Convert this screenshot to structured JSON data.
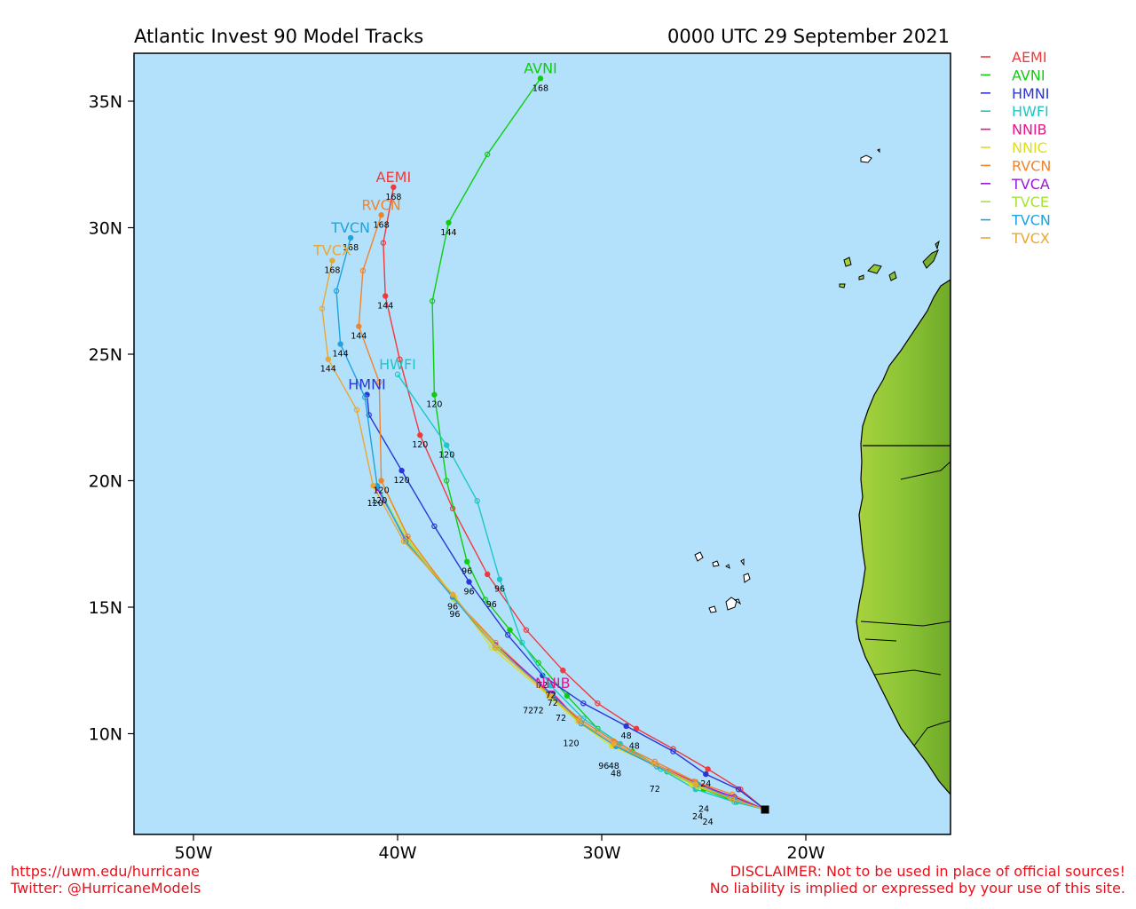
{
  "header": {
    "title": "Atlantic Invest 90 Model Tracks",
    "timestamp": "0000 UTC 29 September 2021"
  },
  "axes": {
    "x_ticks": [
      "50W",
      "40W",
      "30W",
      "20W"
    ],
    "y_ticks": [
      "35N",
      "30N",
      "25N",
      "20N",
      "15N",
      "10N"
    ]
  },
  "colors": {
    "ocean": "#b3e1fb",
    "land": "#7cb92c",
    "land_light": "#a7d33d",
    "border": "#000000"
  },
  "legend": [
    {
      "name": "AEMI",
      "color": "#f0393c"
    },
    {
      "name": "AVNI",
      "color": "#10cc10"
    },
    {
      "name": "HMNI",
      "color": "#2a36d6"
    },
    {
      "name": "HWFI",
      "color": "#1fc6c6"
    },
    {
      "name": "NNIB",
      "color": "#e8158e"
    },
    {
      "name": "NNIC",
      "color": "#dddd22"
    },
    {
      "name": "RVCN",
      "color": "#f0842c"
    },
    {
      "name": "TVCA",
      "color": "#9c19d8"
    },
    {
      "name": "TVCE",
      "color": "#a6e23a"
    },
    {
      "name": "TVCN",
      "color": "#1ea3de"
    },
    {
      "name": "TVCX",
      "color": "#eaa733"
    }
  ],
  "start_point": {
    "lon": -22.0,
    "lat": 7.0
  },
  "tracks": [
    {
      "name": "AEMI",
      "label": "AEMI",
      "points": [
        [
          -22.0,
          7.0
        ],
        [
          -23.2,
          7.8
        ],
        [
          -24.8,
          8.6
        ],
        [
          -26.5,
          9.4
        ],
        [
          -28.3,
          10.2
        ],
        [
          -30.2,
          11.2
        ],
        [
          -31.9,
          12.5
        ],
        [
          -33.7,
          14.1
        ],
        [
          -35.6,
          16.3
        ],
        [
          -37.3,
          18.9
        ],
        [
          -38.9,
          21.8
        ],
        [
          -39.9,
          24.8
        ],
        [
          -40.6,
          27.3
        ],
        [
          -40.7,
          29.4
        ],
        [
          -40.2,
          31.6
        ]
      ],
      "hour_labels": [
        [
          "120",
          -38.9,
          21.8
        ],
        [
          "144",
          -40.6,
          27.3
        ],
        [
          "168",
          -40.2,
          31.6
        ]
      ]
    },
    {
      "name": "AVNI",
      "label": "AVNI",
      "points": [
        [
          -22.0,
          7.0
        ],
        [
          -23.4,
          7.3
        ],
        [
          -25.0,
          7.8
        ],
        [
          -26.8,
          8.5
        ],
        [
          -28.5,
          9.3
        ],
        [
          -30.2,
          10.2
        ],
        [
          -31.7,
          11.5
        ],
        [
          -33.1,
          12.8
        ],
        [
          -34.5,
          14.1
        ],
        [
          -35.7,
          15.3
        ],
        [
          -36.6,
          16.8
        ],
        [
          -37.6,
          20.0
        ],
        [
          -38.2,
          23.4
        ],
        [
          -38.3,
          27.1
        ],
        [
          -37.5,
          30.2
        ],
        [
          -35.6,
          32.9
        ],
        [
          -33.0,
          35.9
        ]
      ],
      "hour_labels": [
        [
          "96",
          -36.6,
          16.8
        ],
        [
          "120",
          -38.2,
          23.4
        ],
        [
          "144",
          -37.5,
          30.2
        ],
        [
          "168",
          -33.0,
          35.9
        ]
      ]
    },
    {
      "name": "HMNI",
      "label": "HMNI",
      "points": [
        [
          -22.0,
          7.0
        ],
        [
          -23.3,
          7.8
        ],
        [
          -24.9,
          8.4
        ],
        [
          -26.5,
          9.3
        ],
        [
          -28.8,
          10.3
        ],
        [
          -30.9,
          11.2
        ],
        [
          -32.9,
          12.3
        ],
        [
          -34.6,
          13.9
        ],
        [
          -36.5,
          16.0
        ],
        [
          -38.2,
          18.2
        ],
        [
          -39.8,
          20.4
        ],
        [
          -41.4,
          22.6
        ],
        [
          -41.5,
          23.4
        ]
      ],
      "hour_labels": [
        [
          "72",
          -32.9,
          12.3
        ],
        [
          "96",
          -36.5,
          16.0
        ],
        [
          "120",
          -39.8,
          20.4
        ],
        [
          "48",
          -28.8,
          10.3
        ],
        [
          "24",
          -24.9,
          8.4
        ]
      ]
    },
    {
      "name": "HWFI",
      "label": "HWFI",
      "points": [
        [
          -22.0,
          7.0
        ],
        [
          -23.5,
          7.3
        ],
        [
          -25.4,
          7.8
        ],
        [
          -27.1,
          8.6
        ],
        [
          -29.1,
          9.6
        ],
        [
          -30.9,
          10.6
        ],
        [
          -32.5,
          11.9
        ],
        [
          -33.9,
          13.6
        ],
        [
          -35.0,
          16.1
        ],
        [
          -36.1,
          19.2
        ],
        [
          -37.6,
          21.4
        ],
        [
          -40.0,
          24.2
        ]
      ],
      "hour_labels": [
        [
          "72",
          -32.5,
          11.9
        ],
        [
          "96",
          -35.0,
          16.1
        ],
        [
          "120",
          -37.6,
          21.4
        ]
      ]
    },
    {
      "name": "NNIB",
      "label": "NNIB",
      "points": [
        [
          -22.0,
          7.0
        ],
        [
          -23.6,
          7.5
        ],
        [
          -25.5,
          8.1
        ],
        [
          -27.4,
          8.8
        ],
        [
          -29.4,
          9.6
        ],
        [
          -31.1,
          10.5
        ],
        [
          -32.4,
          11.6
        ]
      ],
      "hour_labels": [
        [
          "72",
          -32.4,
          11.6
        ]
      ]
    },
    {
      "name": "NNIC",
      "label": "",
      "points": [
        [
          -22.0,
          7.0
        ],
        [
          -23.7,
          7.5
        ],
        [
          -25.6,
          8.0
        ],
        [
          -27.5,
          8.8
        ],
        [
          -29.5,
          9.5
        ],
        [
          -31.2,
          10.5
        ],
        [
          -32.6,
          11.5
        ],
        [
          -35.4,
          13.4
        ],
        [
          -37.2,
          15.4
        ],
        [
          -39.5,
          17.7
        ],
        [
          -40.8,
          20.0
        ]
      ],
      "hour_labels": [
        [
          "120",
          -40.8,
          20.0
        ]
      ]
    },
    {
      "name": "RVCN",
      "label": "RVCN",
      "points": [
        [
          -22.0,
          7.0
        ],
        [
          -23.6,
          7.6
        ],
        [
          -25.4,
          8.1
        ],
        [
          -27.4,
          8.9
        ],
        [
          -29.4,
          9.7
        ],
        [
          -31.1,
          10.6
        ],
        [
          -32.6,
          11.6
        ],
        [
          -35.2,
          13.6
        ],
        [
          -37.3,
          15.4
        ],
        [
          -39.5,
          17.8
        ],
        [
          -40.8,
          20.0
        ],
        [
          -40.9,
          23.9
        ],
        [
          -41.9,
          26.1
        ],
        [
          -41.7,
          28.3
        ],
        [
          -40.8,
          30.5
        ]
      ],
      "hour_labels": [
        [
          "144",
          -41.9,
          26.1
        ],
        [
          "168",
          -40.8,
          30.5
        ]
      ]
    },
    {
      "name": "TVCA",
      "label": "",
      "points": [
        [
          -22.0,
          7.0
        ],
        [
          -23.5,
          7.5
        ],
        [
          -25.4,
          8.0
        ],
        [
          -27.4,
          8.8
        ],
        [
          -29.4,
          9.6
        ],
        [
          -31.1,
          10.5
        ],
        [
          -32.5,
          11.6
        ],
        [
          -35.2,
          13.5
        ],
        [
          -37.3,
          15.4
        ],
        [
          -39.6,
          17.7
        ],
        [
          -41.0,
          19.7
        ]
      ],
      "hour_labels": [
        [
          "96",
          -37.3,
          15.4
        ]
      ]
    },
    {
      "name": "TVCE",
      "label": "",
      "points": [
        [
          -22.0,
          7.0
        ],
        [
          -23.5,
          7.4
        ],
        [
          -25.3,
          7.9
        ],
        [
          -27.3,
          8.7
        ],
        [
          -29.3,
          9.5
        ],
        [
          -31.0,
          10.4
        ],
        [
          -32.4,
          11.4
        ],
        [
          -35.1,
          13.4
        ],
        [
          -37.2,
          15.3
        ],
        [
          -39.5,
          17.6
        ],
        [
          -41.0,
          19.8
        ]
      ],
      "hour_labels": []
    },
    {
      "name": "TVCN",
      "label": "TVCN",
      "points": [
        [
          -22.0,
          7.0
        ],
        [
          -23.5,
          7.4
        ],
        [
          -25.3,
          8.0
        ],
        [
          -27.3,
          8.7
        ],
        [
          -29.3,
          9.5
        ],
        [
          -31.0,
          10.4
        ],
        [
          -32.4,
          11.5
        ],
        [
          -35.2,
          13.4
        ],
        [
          -37.3,
          15.4
        ],
        [
          -39.6,
          17.6
        ],
        [
          -41.0,
          19.8
        ],
        [
          -41.6,
          23.3
        ],
        [
          -42.8,
          25.4
        ],
        [
          -43.0,
          27.5
        ],
        [
          -42.3,
          29.6
        ]
      ],
      "hour_labels": [
        [
          "144",
          -42.8,
          25.4
        ],
        [
          "168",
          -42.3,
          29.6
        ]
      ]
    },
    {
      "name": "TVCX",
      "label": "TVCX",
      "points": [
        [
          -22.0,
          7.0
        ],
        [
          -23.6,
          7.4
        ],
        [
          -25.4,
          8.0
        ],
        [
          -27.4,
          8.8
        ],
        [
          -29.4,
          9.6
        ],
        [
          -31.1,
          10.5
        ],
        [
          -32.5,
          11.5
        ],
        [
          -35.2,
          13.4
        ],
        [
          -37.3,
          15.5
        ],
        [
          -39.7,
          17.6
        ],
        [
          -41.2,
          19.8
        ],
        [
          -42.0,
          22.8
        ],
        [
          -43.4,
          24.8
        ],
        [
          -43.7,
          26.8
        ],
        [
          -43.2,
          28.7
        ]
      ],
      "hour_labels": [
        [
          "144",
          -43.4,
          24.8
        ],
        [
          "168",
          -43.2,
          28.7
        ]
      ]
    }
  ],
  "extra_hour_labels": [
    [
      "24",
      -25.0,
      7.4
    ],
    [
      "24",
      -25.3,
      7.1
    ],
    [
      "24",
      -24.8,
      6.9
    ],
    [
      "48",
      -29.4,
      9.1
    ],
    [
      "48",
      -29.3,
      8.8
    ],
    [
      "48",
      -28.4,
      9.9
    ],
    [
      "72",
      -27.4,
      8.2
    ],
    [
      "72",
      -32.0,
      11.0
    ],
    [
      "72",
      -33.6,
      11.3
    ],
    [
      "72",
      -33.1,
      11.3
    ],
    [
      "96",
      -29.9,
      9.1
    ],
    [
      "96",
      -37.2,
      15.1
    ],
    [
      "96",
      -35.4,
      15.5
    ],
    [
      "120",
      -31.5,
      10.0
    ],
    [
      "120",
      -40.9,
      19.6
    ],
    [
      "120",
      -41.1,
      19.5
    ]
  ],
  "footer": {
    "line1": "https://uwm.edu/hurricane",
    "line2": "Twitter: @HurricaneModels",
    "disclaimer1": "DISCLAIMER: Not to be used in place of official sources!",
    "disclaimer2": "No liability is implied or expressed by your use of this site."
  }
}
